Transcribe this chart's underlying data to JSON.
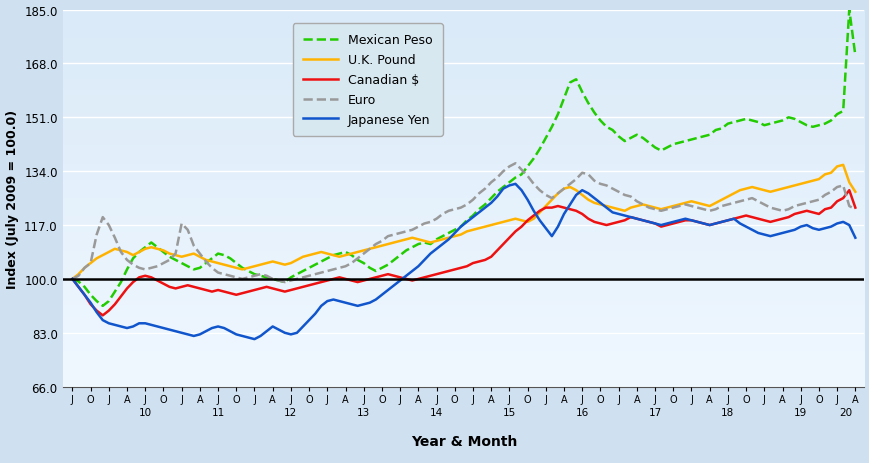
{
  "xlabel": "Year & Month",
  "ylabel": "Index (July 2009 = 100.0)",
  "ylim": [
    66.0,
    185.0
  ],
  "yticks": [
    66.0,
    83.0,
    100.0,
    117.0,
    134.0,
    151.0,
    168.0,
    185.0
  ],
  "fig_bg": "#cfe0f0",
  "plot_bg_top": "#daeaf8",
  "plot_bg_bot": "#f0f8ff",
  "legend_bg": "#d8e8f0",
  "legend_entries": [
    "Mexican Peso",
    "U.K. Pound",
    "Canadian $",
    "Euro",
    "Japanese Yen"
  ],
  "colors": [
    "#22cc00",
    "#ffb300",
    "#ee1111",
    "#999999",
    "#1155cc"
  ],
  "linestyles": [
    "--",
    "-",
    "-",
    "--",
    "-"
  ],
  "linewidths": [
    1.8,
    1.8,
    1.8,
    1.8,
    1.8
  ],
  "mexican_peso": [
    100.0,
    99.2,
    97.5,
    95.0,
    93.0,
    91.5,
    93.0,
    96.0,
    99.0,
    103.0,
    106.5,
    108.5,
    110.0,
    111.5,
    110.0,
    108.5,
    107.0,
    106.0,
    105.0,
    104.0,
    103.0,
    103.5,
    105.0,
    106.5,
    108.0,
    107.5,
    106.5,
    105.0,
    103.5,
    102.5,
    101.5,
    101.0,
    100.5,
    100.0,
    99.5,
    99.0,
    100.5,
    101.5,
    102.5,
    103.5,
    104.5,
    105.5,
    106.5,
    107.5,
    108.0,
    108.5,
    107.5,
    106.0,
    105.0,
    103.5,
    102.5,
    103.5,
    104.5,
    106.0,
    107.5,
    109.0,
    110.0,
    111.0,
    111.5,
    111.0,
    112.5,
    113.5,
    114.5,
    115.5,
    116.5,
    118.5,
    120.0,
    122.0,
    123.5,
    125.5,
    127.5,
    129.0,
    130.5,
    132.0,
    133.0,
    135.5,
    138.0,
    141.0,
    144.5,
    148.0,
    152.0,
    157.0,
    162.0,
    163.0,
    159.0,
    155.5,
    152.5,
    150.0,
    148.0,
    147.0,
    145.0,
    143.5,
    144.5,
    145.5,
    144.5,
    143.0,
    141.5,
    140.5,
    141.5,
    142.5,
    143.0,
    143.5,
    144.0,
    144.5,
    145.0,
    145.5,
    147.0,
    147.5,
    149.0,
    149.5,
    150.0,
    150.5,
    150.0,
    149.5,
    148.5,
    149.0,
    149.5,
    150.0,
    151.0,
    150.5,
    149.5,
    148.5,
    148.0,
    148.5,
    149.0,
    150.0,
    152.0,
    153.0,
    185.0,
    170.5
  ],
  "uk_pound": [
    100.0,
    101.5,
    103.5,
    105.0,
    106.5,
    107.5,
    108.5,
    109.5,
    109.0,
    108.5,
    107.5,
    108.5,
    109.5,
    110.0,
    109.5,
    109.0,
    108.0,
    107.5,
    107.0,
    107.5,
    108.0,
    107.0,
    106.0,
    105.5,
    105.0,
    104.5,
    104.0,
    103.5,
    103.0,
    103.5,
    104.0,
    104.5,
    105.0,
    105.5,
    105.0,
    104.5,
    105.0,
    106.0,
    107.0,
    107.5,
    108.0,
    108.5,
    108.0,
    107.5,
    107.0,
    107.5,
    108.0,
    108.5,
    109.0,
    109.5,
    110.0,
    110.5,
    111.0,
    111.5,
    112.0,
    112.5,
    113.0,
    112.5,
    112.0,
    111.5,
    112.0,
    112.5,
    113.0,
    113.5,
    114.0,
    115.0,
    115.5,
    116.0,
    116.5,
    117.0,
    117.5,
    118.0,
    118.5,
    119.0,
    118.5,
    118.0,
    119.0,
    121.0,
    123.0,
    125.0,
    127.0,
    128.5,
    129.0,
    128.0,
    126.5,
    125.0,
    124.0,
    123.5,
    123.0,
    122.5,
    122.0,
    121.5,
    122.5,
    123.0,
    123.5,
    123.0,
    122.5,
    122.0,
    122.5,
    123.0,
    123.5,
    124.0,
    124.5,
    124.0,
    123.5,
    123.0,
    124.0,
    125.0,
    126.0,
    127.0,
    128.0,
    128.5,
    129.0,
    128.5,
    128.0,
    127.5,
    128.0,
    128.5,
    129.0,
    129.5,
    130.0,
    130.5,
    131.0,
    131.5,
    133.0,
    133.5,
    135.5,
    136.0,
    130.5,
    127.5
  ],
  "canadian_dollar": [
    100.0,
    97.5,
    95.0,
    92.0,
    90.0,
    88.5,
    90.0,
    92.0,
    94.5,
    97.0,
    99.0,
    100.5,
    101.0,
    100.5,
    99.5,
    98.5,
    97.5,
    97.0,
    97.5,
    98.0,
    97.5,
    97.0,
    96.5,
    96.0,
    96.5,
    96.0,
    95.5,
    95.0,
    95.5,
    96.0,
    96.5,
    97.0,
    97.5,
    97.0,
    96.5,
    96.0,
    96.5,
    97.0,
    97.5,
    98.0,
    98.5,
    99.0,
    99.5,
    100.0,
    100.5,
    100.0,
    99.5,
    99.0,
    99.5,
    100.0,
    100.5,
    101.0,
    101.5,
    101.0,
    100.5,
    100.0,
    99.5,
    100.0,
    100.5,
    101.0,
    101.5,
    102.0,
    102.5,
    103.0,
    103.5,
    104.0,
    105.0,
    105.5,
    106.0,
    107.0,
    109.0,
    111.0,
    113.0,
    115.0,
    116.5,
    118.5,
    120.0,
    121.5,
    122.5,
    122.5,
    123.0,
    122.5,
    122.0,
    121.5,
    120.5,
    119.0,
    118.0,
    117.5,
    117.0,
    117.5,
    118.0,
    118.5,
    119.5,
    119.0,
    118.5,
    118.0,
    117.5,
    116.5,
    117.0,
    117.5,
    118.0,
    118.5,
    118.5,
    118.0,
    117.5,
    117.0,
    117.5,
    118.0,
    118.5,
    119.0,
    119.5,
    120.0,
    119.5,
    119.0,
    118.5,
    118.0,
    118.5,
    119.0,
    119.5,
    120.5,
    121.0,
    121.5,
    121.0,
    120.5,
    122.0,
    122.5,
    124.5,
    125.5,
    128.0,
    122.5
  ],
  "euro": [
    100.0,
    101.0,
    103.5,
    105.0,
    114.0,
    119.5,
    117.0,
    113.0,
    108.5,
    106.0,
    104.5,
    103.5,
    103.0,
    103.5,
    104.0,
    105.0,
    106.0,
    108.0,
    117.5,
    115.5,
    110.5,
    108.0,
    105.5,
    103.5,
    102.0,
    101.5,
    101.0,
    100.5,
    100.0,
    100.5,
    101.0,
    101.5,
    101.0,
    100.0,
    99.5,
    99.0,
    99.5,
    100.0,
    100.5,
    101.0,
    101.5,
    102.0,
    102.5,
    103.0,
    103.5,
    104.0,
    105.0,
    106.5,
    108.0,
    109.5,
    111.0,
    112.0,
    113.5,
    114.0,
    114.5,
    115.0,
    115.5,
    116.5,
    117.5,
    118.0,
    119.0,
    120.5,
    121.5,
    122.0,
    122.5,
    123.5,
    125.0,
    127.0,
    128.5,
    130.5,
    132.0,
    134.0,
    135.5,
    136.5,
    134.5,
    132.5,
    130.0,
    128.0,
    126.5,
    125.5,
    127.0,
    128.5,
    130.0,
    131.5,
    133.5,
    133.0,
    131.0,
    130.0,
    129.5,
    128.5,
    127.5,
    126.5,
    126.0,
    124.5,
    123.5,
    122.5,
    122.0,
    121.5,
    122.0,
    122.5,
    123.0,
    123.5,
    123.0,
    122.5,
    122.0,
    121.5,
    122.0,
    123.0,
    123.5,
    124.0,
    124.5,
    125.0,
    125.5,
    124.5,
    123.5,
    122.5,
    122.0,
    121.5,
    122.0,
    123.0,
    123.5,
    124.0,
    124.5,
    125.0,
    126.5,
    127.5,
    129.0,
    129.5,
    123.0,
    122.0
  ],
  "japanese_yen": [
    100.0,
    97.5,
    95.0,
    92.5,
    89.5,
    87.0,
    86.0,
    85.5,
    85.0,
    84.5,
    85.0,
    86.0,
    86.0,
    85.5,
    85.0,
    84.5,
    84.0,
    83.5,
    83.0,
    82.5,
    82.0,
    82.5,
    83.5,
    84.5,
    85.0,
    84.5,
    83.5,
    82.5,
    82.0,
    81.5,
    81.0,
    82.0,
    83.5,
    85.0,
    84.0,
    83.0,
    82.5,
    83.0,
    85.0,
    87.0,
    89.0,
    91.5,
    93.0,
    93.5,
    93.0,
    92.5,
    92.0,
    91.5,
    92.0,
    92.5,
    93.5,
    95.0,
    96.5,
    98.0,
    99.5,
    101.0,
    102.5,
    104.0,
    106.0,
    108.0,
    109.5,
    111.0,
    112.5,
    114.5,
    116.5,
    118.0,
    119.5,
    121.0,
    122.5,
    124.0,
    126.0,
    128.5,
    129.5,
    130.0,
    128.0,
    125.0,
    121.5,
    118.5,
    116.0,
    113.5,
    116.5,
    120.5,
    123.5,
    126.5,
    128.0,
    127.0,
    125.5,
    124.0,
    122.5,
    121.0,
    120.5,
    120.0,
    119.5,
    119.0,
    118.5,
    118.0,
    117.5,
    117.0,
    117.5,
    118.0,
    118.5,
    119.0,
    118.5,
    118.0,
    117.5,
    117.0,
    117.5,
    118.0,
    118.5,
    119.0,
    117.5,
    116.5,
    115.5,
    114.5,
    114.0,
    113.5,
    114.0,
    114.5,
    115.0,
    115.5,
    116.5,
    117.0,
    116.0,
    115.5,
    116.0,
    116.5,
    117.5,
    118.0,
    117.0,
    113.0
  ]
}
